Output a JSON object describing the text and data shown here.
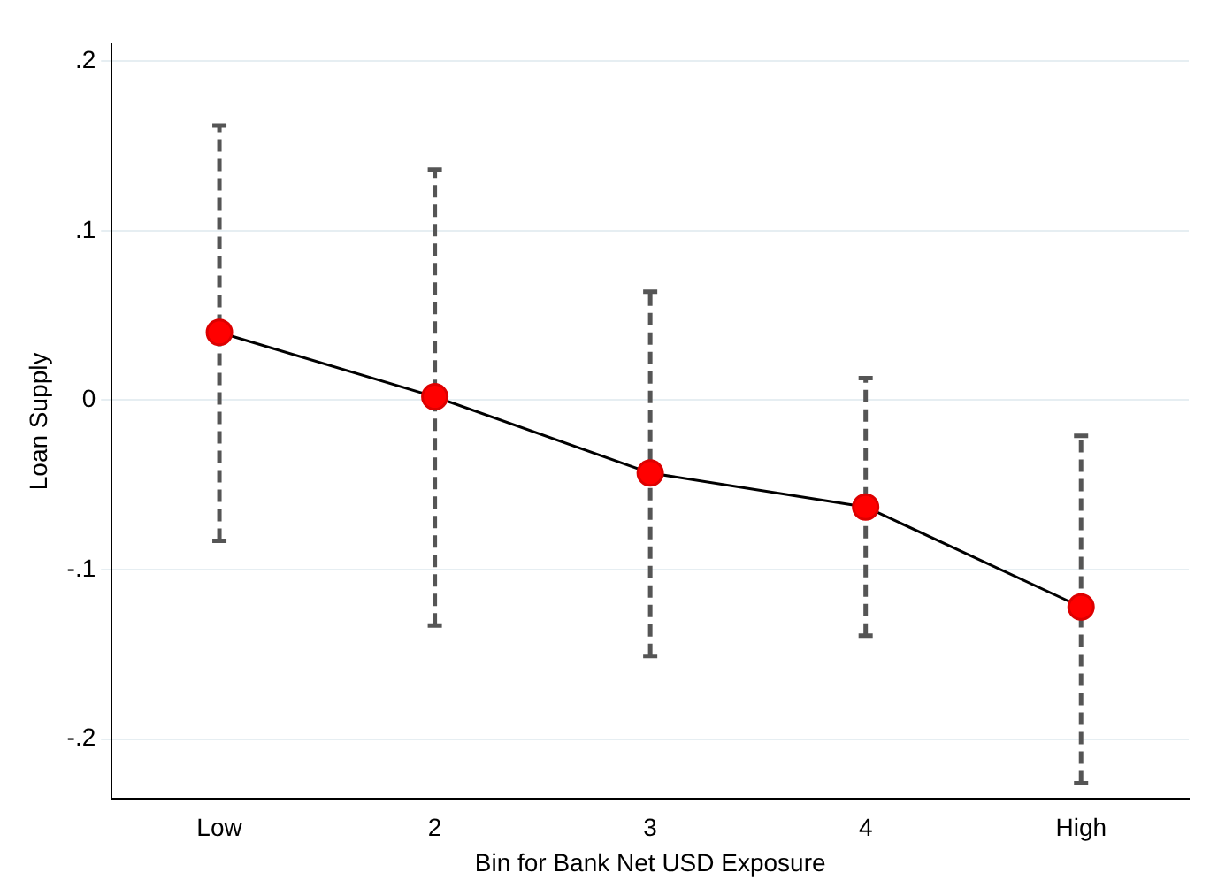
{
  "chart_data": {
    "type": "line",
    "xlabel": "Bin for Bank Net USD Exposure",
    "ylabel": "Loan Supply",
    "categories": [
      "Low",
      "2",
      "3",
      "4",
      "High"
    ],
    "series": [
      {
        "color": "#000000",
        "values": [
          0.04,
          0.002,
          -0.043,
          -0.063,
          -0.122
        ],
        "errors": [
          [
            -0.083,
            0.162
          ],
          [
            -0.133,
            0.136
          ],
          [
            -0.151,
            0.064
          ],
          [
            -0.139,
            0.013
          ],
          [
            -0.226,
            -0.021
          ]
        ]
      }
    ],
    "ylim": [
      -0.235,
      0.21
    ],
    "yticks": [
      {
        "value": -0.2,
        "label": "-.2"
      },
      {
        "value": -0.1,
        "label": "-.1"
      },
      0,
      {
        "value": 0.1,
        "label": ".1"
      },
      {
        "value": 0.2,
        "label": ".2"
      }
    ],
    "grid": "y",
    "legend": false,
    "marker": "circle",
    "line_style": "solid"
  }
}
